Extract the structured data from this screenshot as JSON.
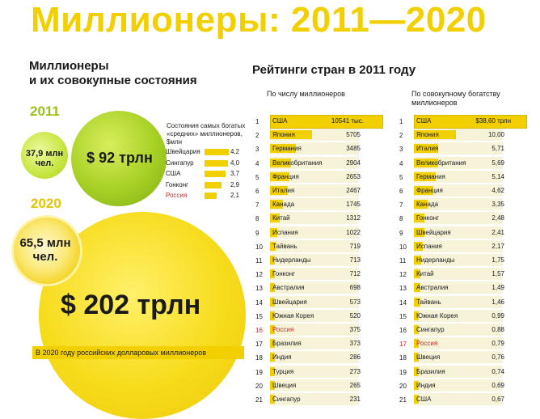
{
  "title": "Миллионеры: 2011—2020",
  "left": {
    "subtitle_line1": "Миллионеры",
    "subtitle_line2": "и их совокупные состояния",
    "y2011": {
      "year": "2011",
      "count_line1": "37,9 млн",
      "count_line2": "чел.",
      "wealth": "$ 92 трлн"
    },
    "y2020": {
      "year": "2020",
      "count_line1": "65,5 млн",
      "count_line2": "чел.",
      "wealth": "$ 202 трлн"
    },
    "mini": {
      "title": "Состояния самых богатых «средних» миллионеров, $млн",
      "rows": [
        {
          "name": "Швейцария",
          "value": "4,2",
          "v": 4.2
        },
        {
          "name": "Сингапур",
          "value": "4,0",
          "v": 4.0
        },
        {
          "name": "США",
          "value": "3,7",
          "v": 3.7
        },
        {
          "name": "Гонконг",
          "value": "2,9",
          "v": 2.9
        },
        {
          "name": "Россия",
          "value": "2,1",
          "v": 2.1
        }
      ]
    },
    "note": "В 2020 году российских долларовых миллионеров"
  },
  "right": {
    "title": "Рейтинги стран в 2011 году",
    "col1_header": "По числу миллионеров",
    "col2_header": "По совокупному богатству миллионеров",
    "col1": [
      {
        "rank": "1",
        "name": "США",
        "value": "10541 тыс.",
        "v": 10541
      },
      {
        "rank": "2",
        "name": "Япония",
        "value": "5705",
        "v": 5705
      },
      {
        "rank": "3",
        "name": "Германия",
        "value": "3485",
        "v": 3485
      },
      {
        "rank": "4",
        "name": "Великобритания",
        "value": "2904",
        "v": 2904
      },
      {
        "rank": "5",
        "name": "Франция",
        "value": "2653",
        "v": 2653
      },
      {
        "rank": "6",
        "name": "Италия",
        "value": "2467",
        "v": 2467
      },
      {
        "rank": "7",
        "name": "Канада",
        "value": "1745",
        "v": 1745
      },
      {
        "rank": "8",
        "name": "Китай",
        "value": "1312",
        "v": 1312
      },
      {
        "rank": "9",
        "name": "Испания",
        "value": "1022",
        "v": 1022
      },
      {
        "rank": "10",
        "name": "Тайвань",
        "value": "719",
        "v": 719
      },
      {
        "rank": "11",
        "name": "Нидерланды",
        "value": "713",
        "v": 713
      },
      {
        "rank": "12",
        "name": "Гонконг",
        "value": "712",
        "v": 712
      },
      {
        "rank": "13",
        "name": "Австралия",
        "value": "698",
        "v": 698
      },
      {
        "rank": "14",
        "name": "Швейцария",
        "value": "573",
        "v": 573
      },
      {
        "rank": "15",
        "name": "Южная Корея",
        "value": "520",
        "v": 520
      },
      {
        "rank": "16",
        "name": "Россия",
        "value": "375",
        "v": 375
      },
      {
        "rank": "17",
        "name": "Бразилия",
        "value": "373",
        "v": 373
      },
      {
        "rank": "18",
        "name": "Индия",
        "value": "286",
        "v": 286
      },
      {
        "rank": "19",
        "name": "Турция",
        "value": "273",
        "v": 273
      },
      {
        "rank": "20",
        "name": "Швеция",
        "value": "265",
        "v": 265
      },
      {
        "rank": "21",
        "name": "Сингапур",
        "value": "231",
        "v": 231
      }
    ],
    "col2": [
      {
        "rank": "1",
        "name": "США",
        "value": "$38,60 трлн",
        "v": 38.6
      },
      {
        "rank": "2",
        "name": "Япония",
        "value": "10,00",
        "v": 10.0
      },
      {
        "rank": "3",
        "name": "Италия",
        "value": "5,71",
        "v": 5.71
      },
      {
        "rank": "4",
        "name": "Великобритания",
        "value": "5,69",
        "v": 5.69
      },
      {
        "rank": "5",
        "name": "Германия",
        "value": "5,14",
        "v": 5.14
      },
      {
        "rank": "6",
        "name": "Франция",
        "value": "4,62",
        "v": 4.62
      },
      {
        "rank": "7",
        "name": "Канада",
        "value": "3,35",
        "v": 3.35
      },
      {
        "rank": "8",
        "name": "Гонконг",
        "value": "2,48",
        "v": 2.48
      },
      {
        "rank": "9",
        "name": "Швейцария",
        "value": "2,41",
        "v": 2.41
      },
      {
        "rank": "10",
        "name": "Испания",
        "value": "2,17",
        "v": 2.17
      },
      {
        "rank": "11",
        "name": "Нидерланды",
        "value": "1,75",
        "v": 1.75
      },
      {
        "rank": "12",
        "name": "Китай",
        "value": "1,57",
        "v": 1.57
      },
      {
        "rank": "13",
        "name": "Австралия",
        "value": "1,49",
        "v": 1.49
      },
      {
        "rank": "14",
        "name": "Тайвань",
        "value": "1,46",
        "v": 1.46
      },
      {
        "rank": "15",
        "name": "Южная Корея",
        "value": "0,99",
        "v": 0.99
      },
      {
        "rank": "16",
        "name": "Сингапур",
        "value": "0,88",
        "v": 0.88
      },
      {
        "rank": "17",
        "name": "Россия",
        "value": "0,79",
        "v": 0.79
      },
      {
        "rank": "18",
        "name": "Швеция",
        "value": "0,76",
        "v": 0.76
      },
      {
        "rank": "19",
        "name": "Бразилия",
        "value": "0,74",
        "v": 0.74
      },
      {
        "rank": "20",
        "name": "Индия",
        "value": "0,69",
        "v": 0.69
      },
      {
        "rank": "21",
        "name": "США",
        "value": "0,67",
        "v": 0.67
      }
    ]
  },
  "colors": {
    "accent": "#f2d000",
    "lime": "#a7d025",
    "russia": "#e02020"
  }
}
